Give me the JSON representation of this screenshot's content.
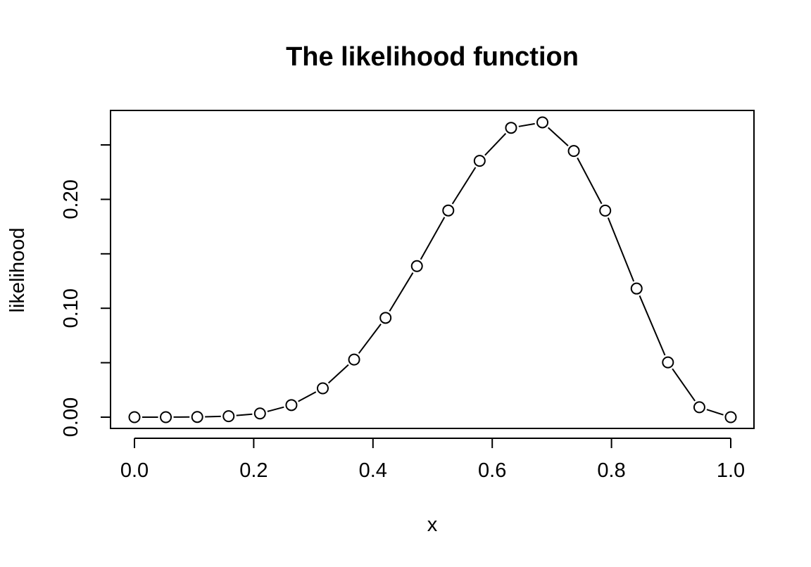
{
  "chart_data": {
    "type": "line",
    "title": "The likelihood function",
    "xlabel": "x",
    "ylabel": "likelihood",
    "xlim": [
      0.0,
      1.0
    ],
    "ylim": [
      0.0,
      0.27
    ],
    "x_ticks": [
      0.0,
      0.2,
      0.4,
      0.6,
      0.8,
      1.0
    ],
    "x_tick_labels": [
      "0.0",
      "0.2",
      "0.4",
      "0.6",
      "0.8",
      "1.0"
    ],
    "y_ticks": [
      0.0,
      0.05,
      0.1,
      0.15,
      0.2,
      0.25
    ],
    "y_tick_labels": [
      "0.00",
      "",
      "0.10",
      "",
      "0.20",
      ""
    ],
    "grid": false,
    "legend": "none",
    "marker": "open-circle",
    "series": [
      {
        "x": [
          0.0,
          0.0526,
          0.1053,
          0.1579,
          0.2105,
          0.2632,
          0.3158,
          0.3684,
          0.4211,
          0.4737,
          0.5263,
          0.5789,
          0.6316,
          0.6842,
          0.7368,
          0.7895,
          0.8421,
          0.8947,
          0.9474,
          1.0
        ],
        "values": [
          0.0,
          1e-05,
          0.00019,
          0.00089,
          0.0034,
          0.0111,
          0.0265,
          0.0529,
          0.0912,
          0.1387,
          0.1898,
          0.2354,
          0.2657,
          0.2707,
          0.2444,
          0.1897,
          0.1181,
          0.0503,
          0.0091,
          0.0
        ]
      }
    ],
    "colors": {
      "line": "#000000",
      "marker_stroke": "#000000",
      "marker_fill": "#ffffff",
      "frame": "#000000",
      "background": "#ffffff"
    }
  }
}
